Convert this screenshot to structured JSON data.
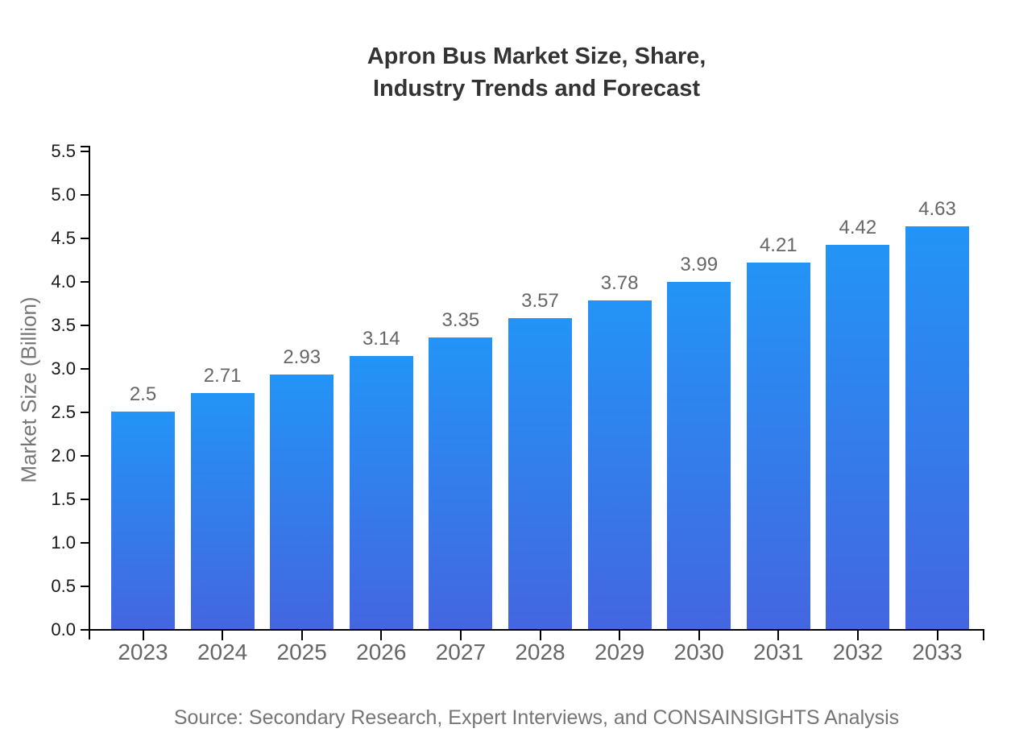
{
  "chart_data": {
    "type": "bar",
    "title_lines": [
      "Apron Bus Market Size, Share,",
      "Industry Trends and Forecast"
    ],
    "categories": [
      "2023",
      "2024",
      "2025",
      "2026",
      "2027",
      "2028",
      "2029",
      "2030",
      "2031",
      "2032",
      "2033"
    ],
    "values": [
      2.5,
      2.71,
      2.93,
      3.14,
      3.35,
      3.57,
      3.78,
      3.99,
      4.21,
      4.42,
      4.63
    ],
    "value_labels": [
      "2.5",
      "2.71",
      "2.93",
      "3.14",
      "3.35",
      "3.57",
      "3.78",
      "3.99",
      "4.21",
      "4.42",
      "4.63"
    ],
    "xlabel": "",
    "ylabel": "Market Size (Billion)",
    "ylim": [
      0,
      5.5
    ],
    "ytick_step": 0.5,
    "grid": false,
    "legend": null,
    "source": "Source: Secondary Research, Expert Interviews, and CONSAINSIGHTS Analysis",
    "colors": {
      "bar_gradient_top": "#2394F6",
      "bar_gradient_bottom": "#4466E0",
      "axis": "#000000",
      "ytick_label": "#1a1a1a",
      "category_label": "#666666",
      "value_label": "#666666",
      "title": "#333333",
      "muted_text": "#757575"
    }
  }
}
